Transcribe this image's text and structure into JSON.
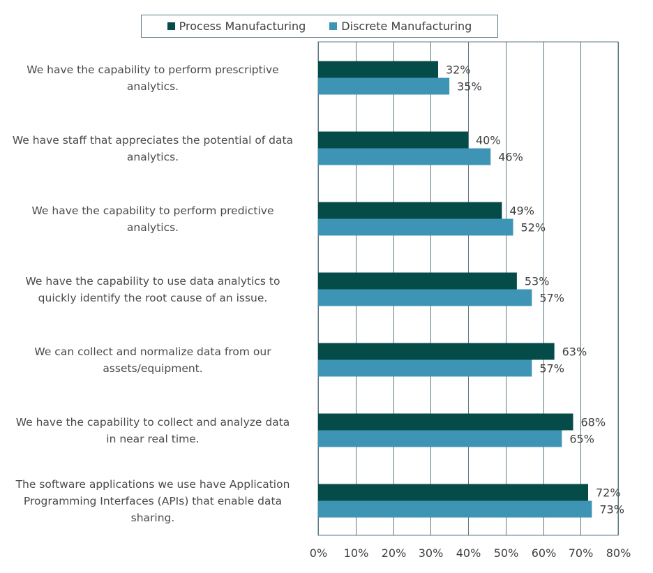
{
  "chart_data": {
    "type": "bar",
    "orientation": "horizontal",
    "title": "",
    "xlabel": "",
    "ylabel": "",
    "xlim": [
      0,
      80
    ],
    "x_ticks": [
      "0%",
      "10%",
      "20%",
      "30%",
      "40%",
      "50%",
      "60%",
      "70%",
      "80%"
    ],
    "x_tick_values": [
      0,
      10,
      20,
      30,
      40,
      50,
      60,
      70,
      80
    ],
    "grid": true,
    "legend_position": "top-center",
    "categories": [
      "We have the capability to perform prescriptive analytics.",
      "We have staff that appreciates the potential of data analytics.",
      "We have the capability to perform predictive analytics.",
      "We have the capability to use data analytics to quickly identify the root cause of an issue.",
      "We can collect and normalize data from our assets/equipment.",
      "We have the capability to collect and analyze data in near real time.",
      "The software applications we use have Application Programming Interfaces (APIs) that enable data sharing."
    ],
    "category_lines": [
      [
        "We have the capability to perform prescriptive",
        "analytics."
      ],
      [
        "We have staff that appreciates the potential of data",
        "analytics."
      ],
      [
        "We have the capability to perform predictive",
        "analytics."
      ],
      [
        "We have the capability to use data analytics to",
        "quickly identify the root cause of an issue."
      ],
      [
        "We can collect and normalize data from our",
        "assets/equipment."
      ],
      [
        "We have the capability to collect and analyze data",
        "in near real time."
      ],
      [
        "The software applications we use have Application",
        "Programming Interfaces (APIs) that enable data",
        "sharing."
      ]
    ],
    "series": [
      {
        "name": "Process Manufacturing",
        "color": "#054b47",
        "values": [
          32,
          40,
          49,
          53,
          63,
          68,
          72
        ],
        "labels": [
          "32%",
          "40%",
          "49%",
          "53%",
          "63%",
          "68%",
          "72%"
        ]
      },
      {
        "name": "Discrete Manufacturing",
        "color": "#3e94b4",
        "values": [
          35,
          46,
          52,
          57,
          57,
          65,
          73
        ],
        "labels": [
          "35%",
          "46%",
          "52%",
          "57%",
          "57%",
          "65%",
          "73%"
        ]
      }
    ],
    "gridline_color": "#5b7683",
    "text_color": "#404040"
  }
}
